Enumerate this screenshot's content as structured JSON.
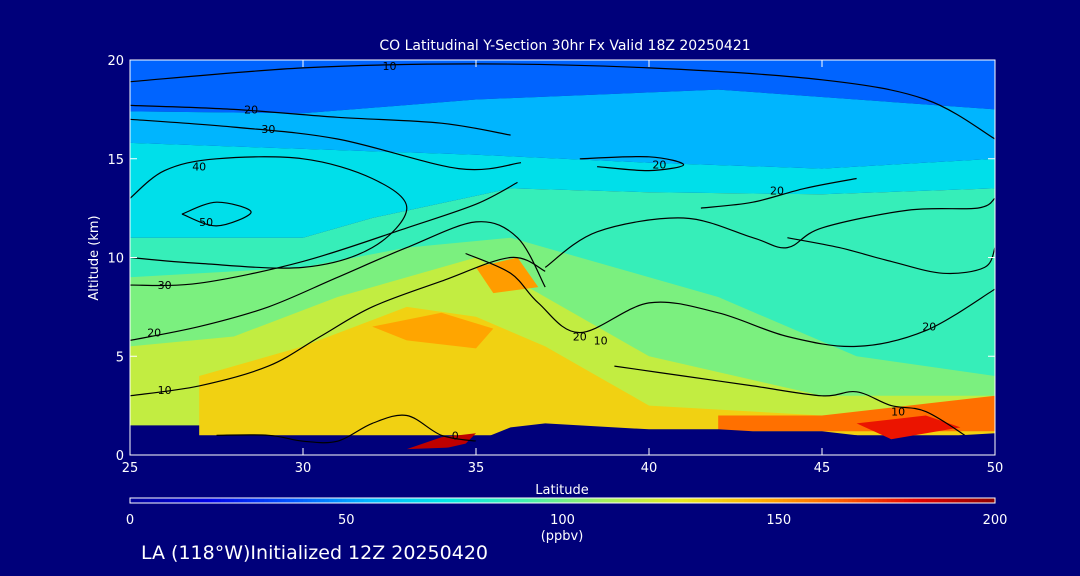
{
  "chart_data": {
    "type": "heatmap",
    "title": "CO Latitudinal Y-Section 30hr  Fx Valid 18Z 20250421",
    "xlabel": "Latitude",
    "ylabel": "Altitude (km)",
    "xlim": [
      25,
      50
    ],
    "ylim": [
      0,
      20
    ],
    "x_ticks": [
      25,
      30,
      35,
      40,
      45,
      50
    ],
    "y_ticks": [
      0,
      5,
      10,
      15,
      20
    ],
    "colorbar": {
      "ticks": [
        0,
        50,
        100,
        150,
        200
      ],
      "range": [
        0,
        200
      ],
      "units": "(ppbv)",
      "colors": [
        "#00009a",
        "#0000e6",
        "#0050ff",
        "#00b4ff",
        "#00e6e6",
        "#40f0b0",
        "#a0f060",
        "#e6ea20",
        "#ffb000",
        "#ff6000",
        "#e60000",
        "#8c0000"
      ]
    },
    "heat_bands": [
      {
        "value": 40,
        "points": [
          [
            25,
            20
          ],
          [
            50,
            20
          ],
          [
            50,
            17.5
          ],
          [
            42,
            18.5
          ],
          [
            35,
            18
          ],
          [
            30,
            17.3
          ],
          [
            25,
            17.4
          ]
        ]
      },
      {
        "value": 55,
        "points": [
          [
            25,
            17.4
          ],
          [
            30,
            17.3
          ],
          [
            35,
            18
          ],
          [
            42,
            18.5
          ],
          [
            50,
            17.5
          ],
          [
            50,
            15
          ],
          [
            45,
            14.5
          ],
          [
            40,
            14.8
          ],
          [
            35,
            15.2
          ],
          [
            30,
            15.5
          ],
          [
            25,
            15.8
          ]
        ]
      },
      {
        "value": 70,
        "points": [
          [
            25,
            15.8
          ],
          [
            30,
            15.5
          ],
          [
            35,
            15.2
          ],
          [
            40,
            14.8
          ],
          [
            45,
            14.5
          ],
          [
            50,
            15
          ],
          [
            50,
            13.5
          ],
          [
            45,
            13.2
          ],
          [
            40,
            13.3
          ],
          [
            36,
            13.5
          ],
          [
            32,
            12
          ],
          [
            30,
            11
          ],
          [
            25,
            11
          ]
        ]
      },
      {
        "value": 88,
        "points": [
          [
            25,
            11
          ],
          [
            30,
            11
          ],
          [
            32,
            12
          ],
          [
            36,
            13.5
          ],
          [
            40,
            13.3
          ],
          [
            45,
            13.2
          ],
          [
            50,
            13.5
          ],
          [
            50,
            3
          ],
          [
            25,
            3
          ]
        ]
      },
      {
        "value": 102,
        "points": [
          [
            25,
            9
          ],
          [
            30,
            9.5
          ],
          [
            33,
            10.5
          ],
          [
            36,
            11
          ],
          [
            39,
            9.5
          ],
          [
            42,
            8
          ],
          [
            46,
            5
          ],
          [
            50,
            4
          ],
          [
            50,
            2
          ],
          [
            25,
            2
          ]
        ]
      },
      {
        "value": 118,
        "points": [
          [
            25,
            5.5
          ],
          [
            28,
            6
          ],
          [
            31,
            8
          ],
          [
            35,
            10
          ],
          [
            37,
            8
          ],
          [
            40,
            5
          ],
          [
            45,
            3
          ],
          [
            50,
            3
          ],
          [
            50,
            1.5
          ],
          [
            25,
            1.5
          ]
        ]
      },
      {
        "value": 135,
        "points": [
          [
            27,
            4
          ],
          [
            30,
            5.5
          ],
          [
            33,
            7.5
          ],
          [
            35,
            7
          ],
          [
            37,
            5.5
          ],
          [
            40,
            2.5
          ],
          [
            45,
            2
          ],
          [
            50,
            2.5
          ],
          [
            50,
            1
          ],
          [
            27,
            1
          ]
        ]
      },
      {
        "value": 148,
        "points": [
          [
            32,
            6.5
          ],
          [
            34,
            7.2
          ],
          [
            35.5,
            6.4
          ],
          [
            35,
            5.4
          ],
          [
            33,
            5.8
          ]
        ]
      },
      {
        "value": 150,
        "points": [
          [
            35,
            9.5
          ],
          [
            36.2,
            10
          ],
          [
            36.8,
            8.5
          ],
          [
            35.5,
            8.2
          ]
        ]
      },
      {
        "value": 160,
        "points": [
          [
            42,
            2
          ],
          [
            45,
            2
          ],
          [
            47,
            2.4
          ],
          [
            50,
            3
          ],
          [
            50,
            1.2
          ],
          [
            42,
            1.2
          ]
        ]
      },
      {
        "value": 178,
        "points": [
          [
            46,
            1.6
          ],
          [
            48,
            2
          ],
          [
            49,
            1.4
          ],
          [
            47,
            0.8
          ]
        ]
      },
      {
        "value": 190,
        "points": [
          [
            33,
            0.3
          ],
          [
            34,
            0.9
          ],
          [
            35,
            1.1
          ],
          [
            34.6,
            0.4
          ]
        ]
      }
    ],
    "terrain": [
      [
        33.2,
        0
      ],
      [
        34,
        0.3
      ],
      [
        35,
        0.7
      ],
      [
        36,
        1.4
      ],
      [
        37,
        1.6
      ],
      [
        38,
        1.5
      ],
      [
        39,
        1.4
      ],
      [
        40,
        1.3
      ],
      [
        41,
        1.3
      ],
      [
        42,
        1.3
      ],
      [
        43,
        1.2
      ],
      [
        44,
        1.2
      ],
      [
        45,
        1.2
      ],
      [
        46,
        1.0
      ],
      [
        47,
        0.5
      ],
      [
        48,
        0.7
      ],
      [
        49,
        1.0
      ],
      [
        50,
        1.1
      ],
      [
        50,
        0
      ],
      [
        33.2,
        0
      ]
    ],
    "contours": [
      {
        "label": "10",
        "label_at": [
          32.5,
          19.7
        ],
        "points": [
          [
            25,
            18.9
          ],
          [
            30,
            19.6
          ],
          [
            35,
            19.8
          ],
          [
            40,
            19.6
          ],
          [
            45,
            19
          ],
          [
            48,
            18
          ],
          [
            50,
            16
          ]
        ]
      },
      {
        "label": "20",
        "label_at": [
          28.5,
          17.5
        ],
        "points": [
          [
            25,
            17.7
          ],
          [
            28,
            17.5
          ],
          [
            31,
            17.1
          ],
          [
            34,
            16.8
          ],
          [
            36,
            16.2
          ]
        ]
      },
      {
        "label": "30",
        "label_at": [
          29,
          16.5
        ],
        "points": [
          [
            25,
            17
          ],
          [
            28,
            16.6
          ],
          [
            31,
            16
          ],
          [
            34.5,
            14.5
          ],
          [
            36.3,
            14.8
          ]
        ]
      },
      {
        "label": "40",
        "label_at": [
          27,
          14.6
        ],
        "points": [
          [
            25,
            13
          ],
          [
            26,
            14.4
          ],
          [
            27.5,
            15
          ],
          [
            30,
            15
          ],
          [
            32,
            14
          ],
          [
            33,
            12.5
          ],
          [
            32,
            10.5
          ],
          [
            30,
            9.5
          ],
          [
            27,
            9.7
          ],
          [
            25,
            10
          ]
        ]
      },
      {
        "label": "50",
        "label_at": [
          27.2,
          11.8
        ],
        "points": [
          [
            26.5,
            12.2
          ],
          [
            27.5,
            12.8
          ],
          [
            28.5,
            12.3
          ],
          [
            27.5,
            11.6
          ],
          [
            26.5,
            12.2
          ]
        ]
      },
      {
        "label": "30",
        "label_at": [
          26,
          8.6
        ],
        "points": [
          [
            25,
            8.6
          ],
          [
            27,
            8.7
          ],
          [
            30,
            9.8
          ],
          [
            33,
            11.5
          ],
          [
            35,
            12.7
          ],
          [
            36.2,
            13.8
          ]
        ]
      },
      {
        "label": "20",
        "label_at": [
          25.7,
          6.2
        ],
        "points": [
          [
            25,
            5.8
          ],
          [
            27,
            6.5
          ],
          [
            29,
            7.5
          ],
          [
            31,
            9
          ],
          [
            33,
            10.5
          ],
          [
            35,
            11.8
          ],
          [
            36.2,
            11
          ],
          [
            37,
            8.5
          ]
        ]
      },
      {
        "label": "10",
        "label_at": [
          26,
          3.3
        ],
        "points": [
          [
            25,
            3
          ],
          [
            27,
            3.5
          ],
          [
            29,
            4.5
          ],
          [
            30.5,
            6
          ],
          [
            32,
            7.5
          ],
          [
            34,
            8.8
          ],
          [
            36,
            10
          ],
          [
            37,
            9.3
          ]
        ]
      },
      {
        "label": "20",
        "label_at": [
          38,
          6
        ],
        "points": [
          [
            37,
            9.5
          ],
          [
            38.5,
            11.3
          ],
          [
            41,
            12
          ],
          [
            43,
            11
          ],
          [
            44,
            10.5
          ],
          [
            45,
            11.5
          ],
          [
            47.5,
            12.4
          ],
          [
            49.5,
            12.5
          ],
          [
            50,
            13
          ]
        ]
      },
      {
        "label": "20",
        "label_at": [
          43.7,
          13.4
        ],
        "points": [
          [
            41.5,
            12.5
          ],
          [
            43,
            12.8
          ],
          [
            44.5,
            13.5
          ],
          [
            46,
            14
          ]
        ]
      },
      {
        "label": "20",
        "label_at": [
          40.3,
          14.7
        ],
        "points": [
          [
            38,
            15
          ],
          [
            40,
            15.1
          ],
          [
            41,
            14.7
          ],
          [
            40,
            14.4
          ],
          [
            38.5,
            14.6
          ]
        ]
      },
      {
        "label": "20",
        "label_at": [
          48.1,
          6.5
        ],
        "points": [
          [
            44,
            11
          ],
          [
            45.5,
            10.5
          ],
          [
            47,
            9.8
          ],
          [
            48.5,
            9.2
          ],
          [
            49.7,
            9.5
          ],
          [
            50,
            10.5
          ]
        ]
      },
      {
        "label": "10",
        "label_at": [
          38.6,
          5.8
        ],
        "points": [
          [
            34.7,
            10.2
          ],
          [
            36,
            9.2
          ],
          [
            36.8,
            7.7
          ],
          [
            38,
            6.2
          ],
          [
            40,
            7.7
          ],
          [
            42,
            7.2
          ],
          [
            44,
            6
          ],
          [
            46,
            5.5
          ],
          [
            48,
            6.3
          ],
          [
            50,
            8.4
          ]
        ]
      },
      {
        "label": "0",
        "label_at": [
          34.4,
          1
        ],
        "points": [
          [
            27.5,
            1
          ],
          [
            29,
            1
          ],
          [
            30,
            0.7
          ],
          [
            31,
            0.7
          ],
          [
            32,
            1.6
          ],
          [
            33,
            2
          ],
          [
            34,
            1
          ],
          [
            35,
            0.7
          ]
        ]
      },
      {
        "label": "10",
        "label_at": [
          47.2,
          2.2
        ],
        "points": [
          [
            39,
            4.5
          ],
          [
            41,
            4
          ],
          [
            43,
            3.5
          ],
          [
            45,
            3
          ],
          [
            46,
            3.2
          ],
          [
            47,
            2.5
          ],
          [
            48,
            2.2
          ],
          [
            49.3,
            0.8
          ]
        ]
      }
    ]
  },
  "footer_text": "LA (118°W)Initialized 12Z 20250420",
  "colors": {
    "background": "#00007a",
    "axes": "#ffffff",
    "terrain": "#00007a",
    "contours": "#000000"
  }
}
